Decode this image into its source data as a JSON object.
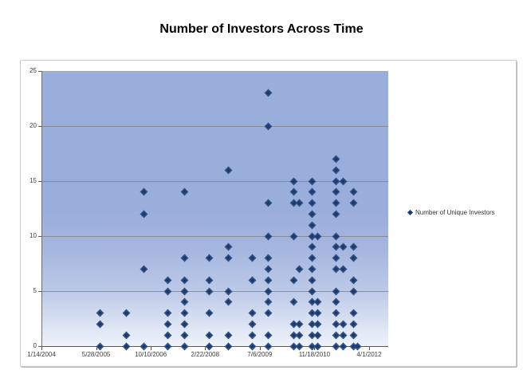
{
  "title": "Number of Investors Across Time",
  "legend": {
    "marker_icon": "diamond-icon",
    "label": "Number of Unique Investors"
  },
  "colors": {
    "marker": "#1c3c6e",
    "marker_edge": "#2e4d85",
    "plot_gradient_top": "#9aaedb",
    "plot_gradient_bottom": "#eef2fa",
    "gridline": "#848484",
    "axis_line": "#595959",
    "frame_border": "#c9c9c9",
    "tick_text": "#3c3c3c"
  },
  "chart_data": {
    "type": "scatter",
    "title": "Number of Investors Across Time",
    "legend_entries": [
      "Number of Unique Investors"
    ],
    "legend_position": "right",
    "grid": "horizontal-only",
    "x_axis": {
      "type": "date",
      "tick_labels": [
        "1/14/2004",
        "5/28/2005",
        "10/10/2006",
        "2/22/2008",
        "7/6/2009",
        "11/18/2010",
        "4/1/2012"
      ],
      "tick_positions": [
        0.0,
        0.158,
        0.316,
        0.473,
        0.631,
        0.789,
        0.947
      ]
    },
    "y_axis": {
      "ticks": [
        0,
        5,
        10,
        15,
        20,
        25
      ],
      "range": [
        0,
        25
      ],
      "gridline_values": [
        5,
        10,
        15,
        20
      ]
    },
    "series": [
      {
        "name": "Number of Unique Investors",
        "marker": "diamond",
        "points_x_fraction_y_value": [
          [
            0.168,
            3
          ],
          [
            0.168,
            2
          ],
          [
            0.168,
            0
          ],
          [
            0.242,
            3
          ],
          [
            0.242,
            1
          ],
          [
            0.242,
            0
          ],
          [
            0.293,
            14
          ],
          [
            0.293,
            12
          ],
          [
            0.293,
            7
          ],
          [
            0.293,
            0
          ],
          [
            0.362,
            6
          ],
          [
            0.362,
            5
          ],
          [
            0.362,
            3
          ],
          [
            0.362,
            2
          ],
          [
            0.362,
            1
          ],
          [
            0.362,
            0
          ],
          [
            0.412,
            14
          ],
          [
            0.412,
            8
          ],
          [
            0.412,
            6
          ],
          [
            0.412,
            5
          ],
          [
            0.412,
            4
          ],
          [
            0.412,
            3
          ],
          [
            0.412,
            2
          ],
          [
            0.412,
            1
          ],
          [
            0.412,
            0
          ],
          [
            0.483,
            8
          ],
          [
            0.483,
            6
          ],
          [
            0.483,
            5
          ],
          [
            0.483,
            3
          ],
          [
            0.483,
            1
          ],
          [
            0.483,
            0
          ],
          [
            0.539,
            16
          ],
          [
            0.539,
            9
          ],
          [
            0.539,
            8
          ],
          [
            0.539,
            5
          ],
          [
            0.539,
            4
          ],
          [
            0.539,
            1
          ],
          [
            0.539,
            0
          ],
          [
            0.606,
            8
          ],
          [
            0.606,
            6
          ],
          [
            0.606,
            3
          ],
          [
            0.606,
            2
          ],
          [
            0.606,
            1
          ],
          [
            0.606,
            0
          ],
          [
            0.654,
            23
          ],
          [
            0.654,
            20
          ],
          [
            0.654,
            13
          ],
          [
            0.654,
            10
          ],
          [
            0.654,
            8
          ],
          [
            0.654,
            7
          ],
          [
            0.654,
            6
          ],
          [
            0.654,
            5
          ],
          [
            0.654,
            4
          ],
          [
            0.654,
            3
          ],
          [
            0.654,
            1
          ],
          [
            0.654,
            0
          ],
          [
            0.726,
            15
          ],
          [
            0.726,
            14
          ],
          [
            0.726,
            13
          ],
          [
            0.726,
            10
          ],
          [
            0.726,
            6
          ],
          [
            0.726,
            4
          ],
          [
            0.726,
            2
          ],
          [
            0.726,
            1
          ],
          [
            0.726,
            0
          ],
          [
            0.742,
            13
          ],
          [
            0.742,
            7
          ],
          [
            0.742,
            2
          ],
          [
            0.742,
            1
          ],
          [
            0.742,
            0
          ],
          [
            0.779,
            15
          ],
          [
            0.779,
            14
          ],
          [
            0.779,
            13
          ],
          [
            0.779,
            12
          ],
          [
            0.779,
            11
          ],
          [
            0.779,
            10
          ],
          [
            0.779,
            9
          ],
          [
            0.779,
            8
          ],
          [
            0.779,
            7
          ],
          [
            0.779,
            6
          ],
          [
            0.779,
            5
          ],
          [
            0.779,
            4
          ],
          [
            0.779,
            3
          ],
          [
            0.779,
            2
          ],
          [
            0.779,
            1
          ],
          [
            0.779,
            0
          ],
          [
            0.797,
            10
          ],
          [
            0.797,
            4
          ],
          [
            0.797,
            3
          ],
          [
            0.797,
            2
          ],
          [
            0.797,
            1
          ],
          [
            0.797,
            0
          ],
          [
            0.848,
            17
          ],
          [
            0.848,
            16
          ],
          [
            0.848,
            15
          ],
          [
            0.848,
            14
          ],
          [
            0.848,
            13
          ],
          [
            0.848,
            12
          ],
          [
            0.848,
            10
          ],
          [
            0.848,
            9
          ],
          [
            0.848,
            8
          ],
          [
            0.848,
            7
          ],
          [
            0.848,
            5
          ],
          [
            0.848,
            4
          ],
          [
            0.848,
            3
          ],
          [
            0.848,
            2
          ],
          [
            0.848,
            1
          ],
          [
            0.848,
            0
          ],
          [
            0.869,
            15
          ],
          [
            0.869,
            9
          ],
          [
            0.869,
            7
          ],
          [
            0.869,
            2
          ],
          [
            0.869,
            1
          ],
          [
            0.869,
            0
          ],
          [
            0.899,
            14
          ],
          [
            0.899,
            13
          ],
          [
            0.899,
            9
          ],
          [
            0.899,
            8
          ],
          [
            0.899,
            6
          ],
          [
            0.899,
            5
          ],
          [
            0.899,
            3
          ],
          [
            0.899,
            2
          ],
          [
            0.899,
            1
          ],
          [
            0.899,
            0
          ],
          [
            0.912,
            0
          ]
        ]
      }
    ]
  }
}
